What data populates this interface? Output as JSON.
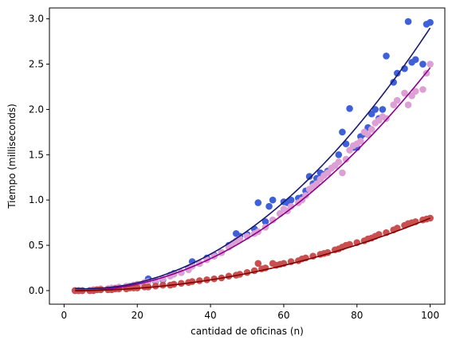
{
  "chart_data": {
    "type": "scatter",
    "title": "",
    "xlabel": "cantidad de oficinas (n)",
    "ylabel": "Tiempo (milliseconds)",
    "xlim": [
      -4,
      104
    ],
    "ylim": [
      -0.15,
      3.12
    ],
    "xticks": [
      0,
      20,
      40,
      60,
      80,
      100
    ],
    "yticks": [
      0.0,
      0.5,
      1.0,
      1.5,
      2.0,
      2.5,
      3.0
    ],
    "ytick_labels": [
      "0.0",
      "0.5",
      "1.0",
      "1.5",
      "2.0",
      "2.5",
      "3.0"
    ],
    "grid": false,
    "legend": "none",
    "series": [
      {
        "color": "#4060d8",
        "fit_color": "#191970",
        "fit": [
          0.03,
          -0.0036,
          0.000323
        ],
        "points": [
          [
            3,
            0.0
          ],
          [
            4,
            0.0
          ],
          [
            5,
            0.0
          ],
          [
            7,
            0.0
          ],
          [
            8,
            0.01
          ],
          [
            9,
            0.01
          ],
          [
            10,
            0.01
          ],
          [
            12,
            0.02
          ],
          [
            13,
            0.02
          ],
          [
            14,
            0.02
          ],
          [
            15,
            0.03
          ],
          [
            17,
            0.04
          ],
          [
            18,
            0.05
          ],
          [
            19,
            0.06
          ],
          [
            20,
            0.06
          ],
          [
            22,
            0.08
          ],
          [
            23,
            0.13
          ],
          [
            25,
            0.1
          ],
          [
            27,
            0.12
          ],
          [
            29,
            0.17
          ],
          [
            30,
            0.19
          ],
          [
            32,
            0.2
          ],
          [
            34,
            0.25
          ],
          [
            35,
            0.32
          ],
          [
            37,
            0.3
          ],
          [
            39,
            0.36
          ],
          [
            41,
            0.39
          ],
          [
            43,
            0.42
          ],
          [
            45,
            0.5
          ],
          [
            47,
            0.63
          ],
          [
            48,
            0.6
          ],
          [
            50,
            0.62
          ],
          [
            52,
            0.68
          ],
          [
            53,
            0.97
          ],
          [
            55,
            0.76
          ],
          [
            56,
            0.93
          ],
          [
            57,
            1.0
          ],
          [
            59,
            0.85
          ],
          [
            60,
            0.98
          ],
          [
            61,
            0.97
          ],
          [
            62,
            1.0
          ],
          [
            64,
            1.02
          ],
          [
            65,
            1.03
          ],
          [
            66,
            1.1
          ],
          [
            67,
            1.26
          ],
          [
            68,
            1.18
          ],
          [
            69,
            1.24
          ],
          [
            70,
            1.3
          ],
          [
            71,
            1.28
          ],
          [
            72,
            1.32
          ],
          [
            73,
            1.35
          ],
          [
            74,
            1.38
          ],
          [
            75,
            1.5
          ],
          [
            76,
            1.75
          ],
          [
            77,
            1.62
          ],
          [
            78,
            2.01
          ],
          [
            79,
            1.58
          ],
          [
            80,
            1.58
          ],
          [
            81,
            1.7
          ],
          [
            82,
            1.73
          ],
          [
            83,
            1.8
          ],
          [
            84,
            1.95
          ],
          [
            85,
            2.0
          ],
          [
            86,
            1.9
          ],
          [
            87,
            2.0
          ],
          [
            88,
            2.59
          ],
          [
            90,
            2.3
          ],
          [
            91,
            2.4
          ],
          [
            93,
            2.45
          ],
          [
            94,
            2.97
          ],
          [
            95,
            2.52
          ],
          [
            96,
            2.55
          ],
          [
            98,
            2.5
          ],
          [
            99,
            2.94
          ],
          [
            100,
            2.96
          ]
        ]
      },
      {
        "color": "#dda0d4",
        "fit_color": "#8b008b",
        "fit": [
          0.0,
          -0.0017,
          0.000263
        ],
        "points": [
          [
            3,
            0.0
          ],
          [
            4,
            0.0
          ],
          [
            5,
            0.0
          ],
          [
            7,
            0.0
          ],
          [
            8,
            0.01
          ],
          [
            9,
            0.01
          ],
          [
            10,
            0.02
          ],
          [
            12,
            0.02
          ],
          [
            13,
            0.03
          ],
          [
            14,
            0.03
          ],
          [
            15,
            0.04
          ],
          [
            17,
            0.05
          ],
          [
            18,
            0.05
          ],
          [
            19,
            0.06
          ],
          [
            20,
            0.07
          ],
          [
            22,
            0.09
          ],
          [
            23,
            0.1
          ],
          [
            25,
            0.11
          ],
          [
            27,
            0.13
          ],
          [
            29,
            0.16
          ],
          [
            30,
            0.18
          ],
          [
            32,
            0.2
          ],
          [
            34,
            0.23
          ],
          [
            35,
            0.27
          ],
          [
            37,
            0.3
          ],
          [
            39,
            0.34
          ],
          [
            41,
            0.38
          ],
          [
            43,
            0.42
          ],
          [
            45,
            0.48
          ],
          [
            46,
            0.52
          ],
          [
            47,
            0.55
          ],
          [
            48,
            0.57
          ],
          [
            50,
            0.6
          ],
          [
            52,
            0.63
          ],
          [
            53,
            0.65
          ],
          [
            55,
            0.7
          ],
          [
            57,
            0.78
          ],
          [
            59,
            0.85
          ],
          [
            60,
            0.9
          ],
          [
            61,
            0.88
          ],
          [
            62,
            0.93
          ],
          [
            64,
            0.97
          ],
          [
            65,
            1.0
          ],
          [
            66,
            1.05
          ],
          [
            67,
            1.12
          ],
          [
            68,
            1.15
          ],
          [
            69,
            1.18
          ],
          [
            70,
            1.23
          ],
          [
            71,
            1.27
          ],
          [
            72,
            1.3
          ],
          [
            73,
            1.35
          ],
          [
            74,
            1.38
          ],
          [
            75,
            1.42
          ],
          [
            76,
            1.3
          ],
          [
            77,
            1.45
          ],
          [
            78,
            1.55
          ],
          [
            79,
            1.6
          ],
          [
            80,
            1.62
          ],
          [
            81,
            1.65
          ],
          [
            82,
            1.75
          ],
          [
            83,
            1.72
          ],
          [
            84,
            1.78
          ],
          [
            85,
            1.85
          ],
          [
            86,
            1.88
          ],
          [
            87,
            1.92
          ],
          [
            88,
            1.9
          ],
          [
            90,
            2.05
          ],
          [
            91,
            2.1
          ],
          [
            93,
            2.18
          ],
          [
            94,
            2.05
          ],
          [
            95,
            2.15
          ],
          [
            96,
            2.2
          ],
          [
            98,
            2.22
          ],
          [
            99,
            2.4
          ],
          [
            100,
            2.5
          ]
        ]
      },
      {
        "color": "#c85050",
        "fit_color": "#800000",
        "fit": [
          0.0,
          -0.0004,
          8.39e-05
        ],
        "points": [
          [
            3,
            0.0
          ],
          [
            4,
            0.0
          ],
          [
            5,
            0.0
          ],
          [
            7,
            0.0
          ],
          [
            8,
            0.0
          ],
          [
            9,
            0.01
          ],
          [
            10,
            0.01
          ],
          [
            12,
            0.01
          ],
          [
            13,
            0.01
          ],
          [
            14,
            0.02
          ],
          [
            15,
            0.02
          ],
          [
            17,
            0.02
          ],
          [
            18,
            0.03
          ],
          [
            19,
            0.03
          ],
          [
            20,
            0.03
          ],
          [
            22,
            0.04
          ],
          [
            23,
            0.04
          ],
          [
            25,
            0.05
          ],
          [
            27,
            0.06
          ],
          [
            29,
            0.06
          ],
          [
            30,
            0.07
          ],
          [
            32,
            0.08
          ],
          [
            34,
            0.09
          ],
          [
            35,
            0.1
          ],
          [
            37,
            0.11
          ],
          [
            39,
            0.12
          ],
          [
            41,
            0.13
          ],
          [
            43,
            0.14
          ],
          [
            45,
            0.16
          ],
          [
            47,
            0.17
          ],
          [
            48,
            0.18
          ],
          [
            50,
            0.2
          ],
          [
            52,
            0.22
          ],
          [
            53,
            0.3
          ],
          [
            54,
            0.24
          ],
          [
            55,
            0.25
          ],
          [
            57,
            0.3
          ],
          [
            58,
            0.28
          ],
          [
            59,
            0.29
          ],
          [
            60,
            0.3
          ],
          [
            62,
            0.32
          ],
          [
            64,
            0.33
          ],
          [
            65,
            0.35
          ],
          [
            66,
            0.36
          ],
          [
            68,
            0.38
          ],
          [
            70,
            0.4
          ],
          [
            71,
            0.41
          ],
          [
            72,
            0.42
          ],
          [
            74,
            0.45
          ],
          [
            75,
            0.46
          ],
          [
            76,
            0.48
          ],
          [
            77,
            0.5
          ],
          [
            78,
            0.51
          ],
          [
            80,
            0.53
          ],
          [
            82,
            0.55
          ],
          [
            83,
            0.57
          ],
          [
            84,
            0.58
          ],
          [
            85,
            0.6
          ],
          [
            86,
            0.62
          ],
          [
            88,
            0.64
          ],
          [
            90,
            0.67
          ],
          [
            91,
            0.69
          ],
          [
            93,
            0.72
          ],
          [
            94,
            0.74
          ],
          [
            95,
            0.75
          ],
          [
            96,
            0.76
          ],
          [
            98,
            0.78
          ],
          [
            99,
            0.79
          ],
          [
            100,
            0.8
          ]
        ]
      }
    ]
  }
}
